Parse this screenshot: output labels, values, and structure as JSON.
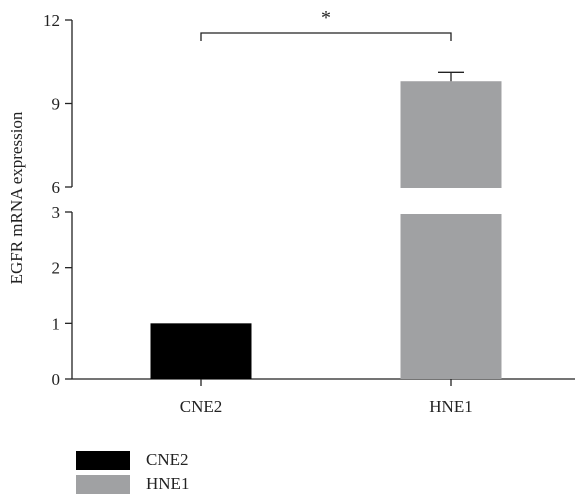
{
  "chart_data": {
    "type": "bar",
    "categories": [
      "CNE2",
      "HNE1"
    ],
    "values": [
      1.0,
      9.8
    ],
    "errors": [
      0,
      0.32
    ],
    "colors": [
      "#000000",
      "#a0a1a3"
    ],
    "ylabel": "EGFR mRNA expression",
    "xlabel": "",
    "axis_break": {
      "lower": [
        0,
        3
      ],
      "upper": [
        6,
        12
      ]
    },
    "yticks_lower": [
      "0",
      "1",
      "2",
      "3"
    ],
    "yticks_upper": [
      "6",
      "9",
      "12"
    ],
    "yticks_lower_values": [
      0,
      1,
      2,
      3
    ],
    "yticks_upper_values": [
      6,
      9,
      12
    ],
    "significance": {
      "label": "*",
      "between": [
        "CNE2",
        "HNE1"
      ]
    },
    "legend": {
      "position": "bottom-left",
      "entries": [
        "CNE2",
        "HNE1"
      ]
    },
    "grid": false
  }
}
